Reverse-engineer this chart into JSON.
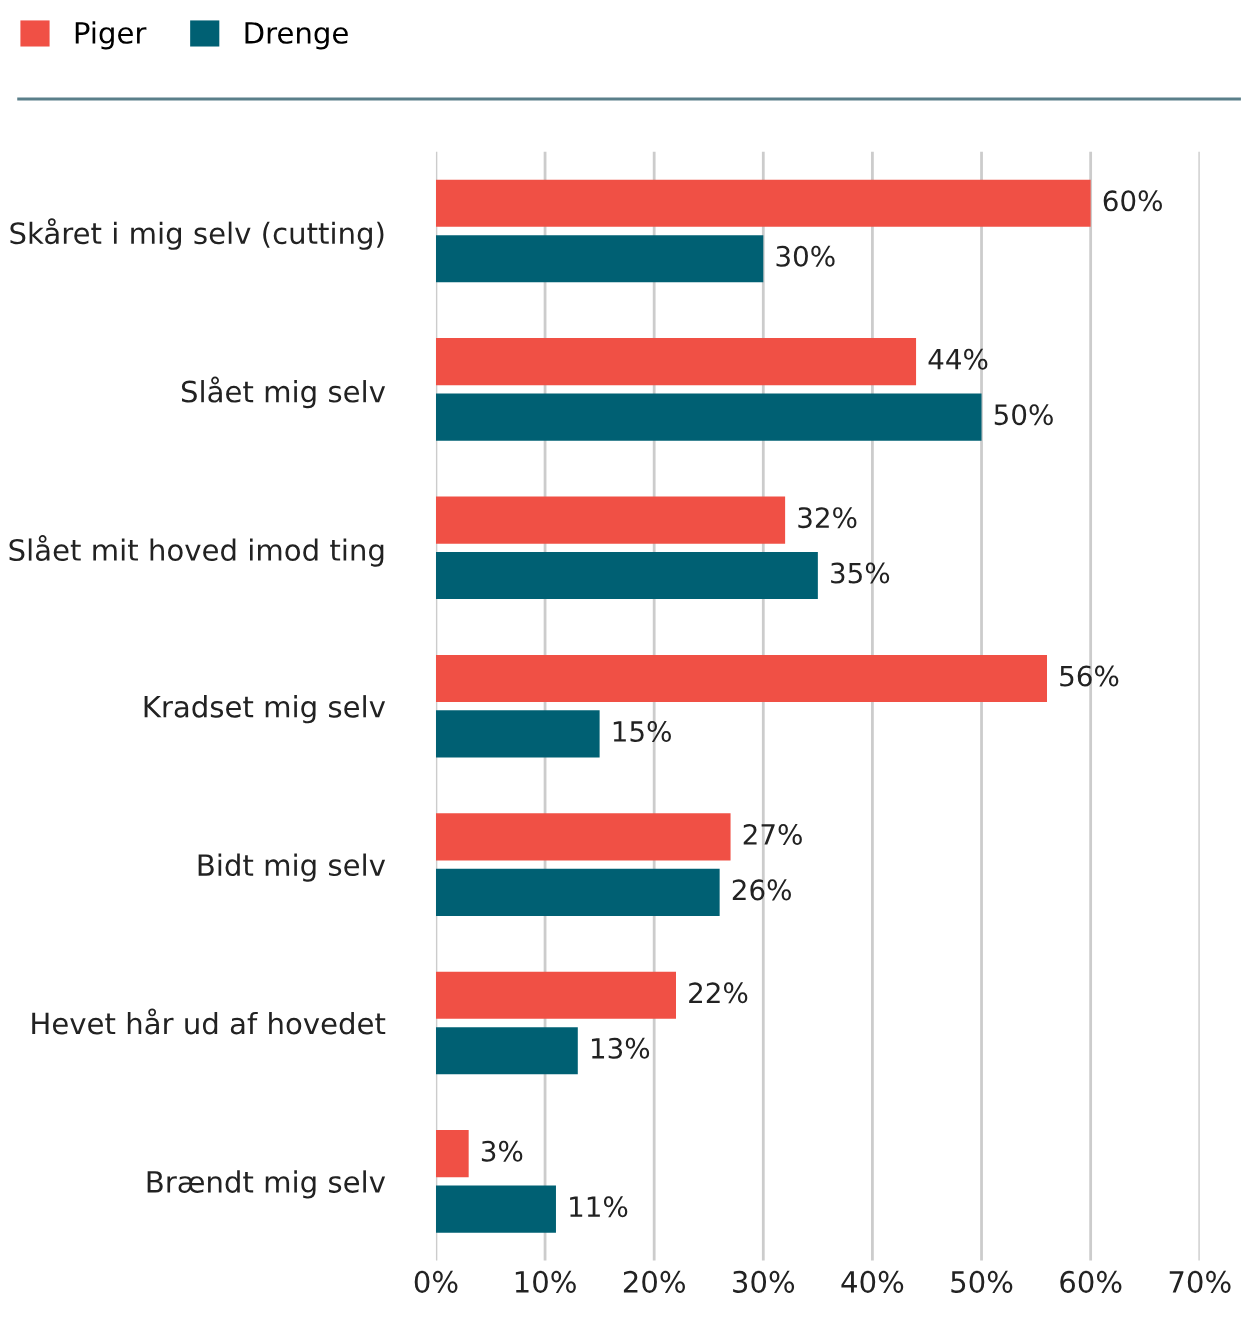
{
  "chart_data": {
    "type": "bar",
    "orientation": "horizontal",
    "categories": [
      "Skåret i mig selv (cutting)",
      "Slået mig selv",
      "Slået mit hoved imod ting",
      "Kradset mig selv",
      "Bidt mig selv",
      "Hevet hår ud af hovedet",
      "Brændt mig selv"
    ],
    "series": [
      {
        "name": "Piger",
        "color": "#f05045",
        "values": [
          60,
          44,
          32,
          56,
          27,
          22,
          3
        ],
        "value_labels": [
          "60%",
          "44%",
          "32%",
          "56%",
          "27%",
          "22%",
          "3%"
        ]
      },
      {
        "name": "Drenge",
        "color": "#006073",
        "values": [
          30,
          50,
          35,
          15,
          26,
          13,
          11
        ],
        "value_labels": [
          "30%",
          "50%",
          "35%",
          "15%",
          "26%",
          "13%",
          "11%"
        ]
      }
    ],
    "xlim": [
      0,
      70
    ],
    "xticks": [
      {
        "value": 0,
        "label": "0%"
      },
      {
        "value": 10,
        "label": "10%"
      },
      {
        "value": 20,
        "label": "20%"
      },
      {
        "value": 30,
        "label": "30%"
      },
      {
        "value": 40,
        "label": "40%"
      },
      {
        "value": 50,
        "label": "50%"
      },
      {
        "value": 60,
        "label": "60%"
      },
      {
        "value": 70,
        "label": "70%"
      }
    ],
    "grid": "x",
    "legend": "top left"
  }
}
